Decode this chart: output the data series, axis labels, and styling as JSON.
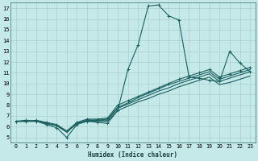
{
  "xlabel": "Humidex (Indice chaleur)",
  "ylabel": "",
  "bg_color": "#c5e8e8",
  "grid_color": "#aed4d0",
  "line_color": "#1a6060",
  "xlim": [
    -0.5,
    23.5
  ],
  "ylim": [
    4.5,
    17.5
  ],
  "xticks": [
    0,
    1,
    2,
    3,
    4,
    5,
    6,
    7,
    8,
    9,
    10,
    11,
    12,
    13,
    14,
    15,
    16,
    17,
    18,
    19,
    20,
    21,
    22,
    23
  ],
  "yticks": [
    5,
    6,
    7,
    8,
    9,
    10,
    11,
    12,
    13,
    14,
    15,
    16,
    17
  ],
  "lines": [
    {
      "x": [
        0,
        1,
        2,
        3,
        4,
        5,
        6,
        7,
        8,
        9,
        10,
        11,
        12,
        13,
        14,
        15,
        16,
        17,
        18,
        19,
        20,
        21,
        22,
        23
      ],
      "y": [
        6.5,
        6.6,
        6.5,
        6.2,
        5.9,
        5.0,
        6.2,
        6.5,
        6.4,
        6.3,
        7.5,
        11.3,
        13.6,
        17.2,
        17.3,
        16.3,
        15.9,
        10.6,
        10.5,
        10.3,
        10.2,
        13.0,
        11.9,
        11.1
      ],
      "marker": true
    },
    {
      "x": [
        0,
        1,
        2,
        3,
        4,
        5,
        6,
        7,
        8,
        9,
        10,
        11,
        12,
        13,
        14,
        15,
        16,
        17,
        18,
        19,
        20,
        21,
        22,
        23
      ],
      "y": [
        6.5,
        6.5,
        6.5,
        6.3,
        6.1,
        5.5,
        6.3,
        6.5,
        6.5,
        6.5,
        7.5,
        7.9,
        8.3,
        8.6,
        9.0,
        9.3,
        9.7,
        10.0,
        10.3,
        10.6,
        9.9,
        10.1,
        10.4,
        10.7
      ],
      "marker": false
    },
    {
      "x": [
        0,
        1,
        2,
        3,
        4,
        5,
        6,
        7,
        8,
        9,
        10,
        11,
        12,
        13,
        14,
        15,
        16,
        17,
        18,
        19,
        20,
        21,
        22,
        23
      ],
      "y": [
        6.5,
        6.5,
        6.5,
        6.3,
        6.1,
        5.5,
        6.3,
        6.6,
        6.6,
        6.6,
        7.7,
        8.1,
        8.5,
        8.9,
        9.3,
        9.6,
        10.0,
        10.3,
        10.6,
        10.9,
        10.2,
        10.5,
        10.8,
        11.1
      ],
      "marker": false
    },
    {
      "x": [
        0,
        1,
        2,
        3,
        4,
        5,
        6,
        7,
        8,
        9,
        10,
        11,
        12,
        13,
        14,
        15,
        16,
        17,
        18,
        19,
        20,
        21,
        22,
        23
      ],
      "y": [
        6.5,
        6.5,
        6.5,
        6.3,
        6.1,
        5.5,
        6.3,
        6.6,
        6.6,
        6.7,
        7.8,
        8.2,
        8.7,
        9.1,
        9.5,
        9.9,
        10.2,
        10.5,
        10.8,
        11.1,
        10.4,
        10.7,
        11.0,
        11.3
      ],
      "marker": false
    },
    {
      "x": [
        0,
        1,
        2,
        3,
        4,
        5,
        6,
        7,
        8,
        9,
        10,
        11,
        12,
        13,
        14,
        15,
        16,
        17,
        18,
        19,
        20,
        21,
        22,
        23
      ],
      "y": [
        6.5,
        6.5,
        6.6,
        6.4,
        6.2,
        5.6,
        6.4,
        6.7,
        6.7,
        6.8,
        8.0,
        8.4,
        8.8,
        9.2,
        9.6,
        10.0,
        10.4,
        10.7,
        11.0,
        11.3,
        10.6,
        10.9,
        11.2,
        11.5
      ],
      "marker": true
    }
  ]
}
